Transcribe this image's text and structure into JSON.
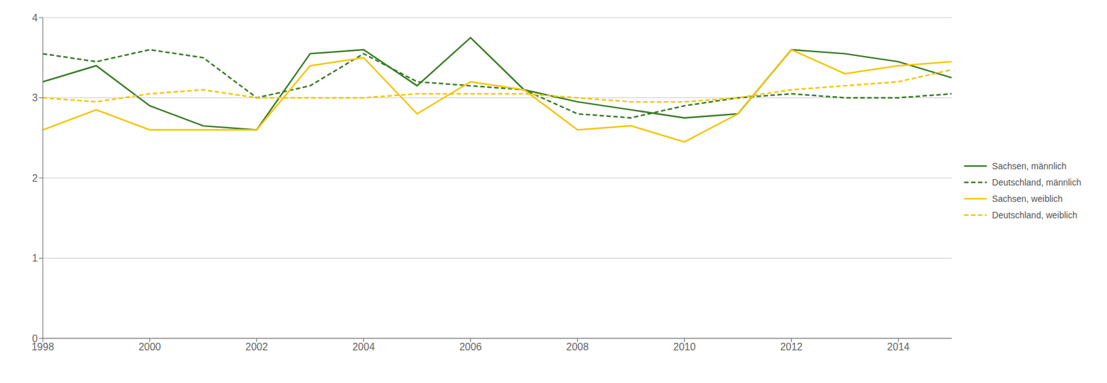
{
  "chart_data": {
    "type": "line",
    "x": [
      1998,
      1999,
      2000,
      2001,
      2002,
      2003,
      2004,
      2005,
      2006,
      2007,
      2008,
      2009,
      2010,
      2011,
      2012,
      2013,
      2014,
      2015
    ],
    "series": [
      {
        "name": "Sachsen, männlich",
        "color": "#3a7d27",
        "line_style": "solid",
        "values": [
          3.2,
          3.4,
          2.9,
          2.65,
          2.6,
          3.55,
          3.6,
          3.15,
          3.75,
          3.1,
          2.95,
          2.85,
          2.75,
          2.8,
          3.6,
          3.55,
          3.45,
          3.25
        ]
      },
      {
        "name": "Deutschland, männlich",
        "color": "#3a7d27",
        "line_style": "dashed",
        "values": [
          3.55,
          3.45,
          3.6,
          3.5,
          3.0,
          3.15,
          3.55,
          3.2,
          3.15,
          3.1,
          2.8,
          2.75,
          2.9,
          3.0,
          3.05,
          3.0,
          3.0,
          3.05
        ]
      },
      {
        "name": "Sachsen, weiblich",
        "color": "#f5c500",
        "line_style": "solid",
        "values": [
          2.6,
          2.85,
          2.6,
          2.6,
          2.6,
          3.4,
          3.5,
          2.8,
          3.2,
          3.1,
          2.6,
          2.65,
          2.45,
          2.8,
          3.6,
          3.3,
          3.4,
          3.45
        ]
      },
      {
        "name": "Deutschland, weiblich",
        "color": "#f5c500",
        "line_style": "dashed",
        "values": [
          3.0,
          2.95,
          3.05,
          3.1,
          3.0,
          3.0,
          3.0,
          3.05,
          3.05,
          3.05,
          3.0,
          2.95,
          2.95,
          3.0,
          3.1,
          3.15,
          3.2,
          3.35
        ]
      }
    ],
    "xlim": [
      1998,
      2015
    ],
    "xticks": [
      1998,
      2000,
      2002,
      2004,
      2006,
      2008,
      2010,
      2012,
      2014
    ],
    "ylim": [
      0,
      4
    ],
    "yticks": [
      0,
      1,
      2,
      3,
      4
    ],
    "grid": true,
    "legend": "right"
  }
}
